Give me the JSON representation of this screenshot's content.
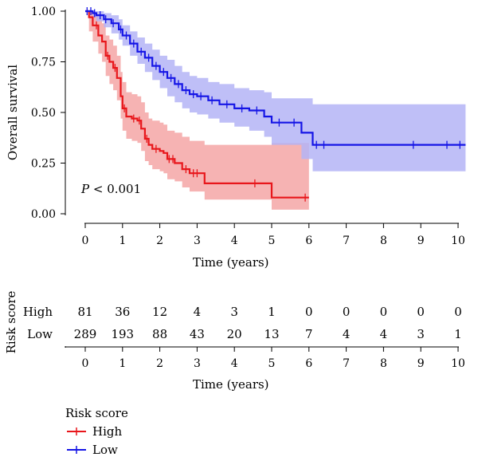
{
  "chart_data": [
    {
      "type": "line",
      "subtype": "kaplan-meier",
      "title": "",
      "xlabel": "Time (years)",
      "ylabel": "Overall survival",
      "xlim": [
        0,
        10.2
      ],
      "ylim": [
        0,
        1.0
      ],
      "x_ticks": [
        "0",
        "1",
        "2",
        "3",
        "4",
        "5",
        "6",
        "7",
        "8",
        "9",
        "10"
      ],
      "y_ticks": [
        "0.00",
        "0.25",
        "0.50",
        "0.75",
        "1.00"
      ],
      "annotation": {
        "p_symbol": "P",
        "p_rest": " < 0.001"
      },
      "grid": false,
      "series": [
        {
          "name": "High",
          "color": "#e8161b",
          "band_color": "#f4a6a6",
          "x": [
            0,
            0.1,
            0.2,
            0.35,
            0.45,
            0.55,
            0.65,
            0.75,
            0.85,
            0.95,
            1.0,
            1.1,
            1.25,
            1.4,
            1.5,
            1.6,
            1.7,
            1.8,
            2.0,
            2.1,
            2.2,
            2.4,
            2.6,
            2.8,
            3.2,
            4.5,
            5.0,
            6.0
          ],
          "y": [
            1.0,
            0.97,
            0.93,
            0.88,
            0.85,
            0.78,
            0.75,
            0.72,
            0.67,
            0.58,
            0.52,
            0.48,
            0.47,
            0.46,
            0.42,
            0.37,
            0.34,
            0.32,
            0.31,
            0.3,
            0.27,
            0.25,
            0.22,
            0.2,
            0.15,
            0.15,
            0.08,
            0.08
          ],
          "upper": [
            1.0,
            1.0,
            0.99,
            0.97,
            0.94,
            0.88,
            0.86,
            0.83,
            0.78,
            0.7,
            0.65,
            0.6,
            0.59,
            0.58,
            0.55,
            0.5,
            0.47,
            0.46,
            0.45,
            0.44,
            0.41,
            0.4,
            0.38,
            0.36,
            0.34,
            0.34,
            0.35,
            0.35
          ],
          "lower": [
            1.0,
            0.9,
            0.85,
            0.79,
            0.75,
            0.68,
            0.64,
            0.61,
            0.56,
            0.47,
            0.41,
            0.37,
            0.36,
            0.35,
            0.31,
            0.26,
            0.24,
            0.22,
            0.21,
            0.2,
            0.17,
            0.16,
            0.13,
            0.11,
            0.07,
            0.07,
            0.02,
            0.02
          ],
          "censor_x": [
            0.3,
            0.6,
            0.8,
            1.05,
            1.3,
            1.45,
            1.65,
            1.9,
            2.25,
            2.35,
            2.7,
            2.9,
            3.0,
            4.55,
            5.9
          ],
          "at_risk": [
            81,
            36,
            12,
            4,
            3,
            1,
            0,
            0,
            0,
            0,
            0
          ]
        },
        {
          "name": "Low",
          "color": "#1515e6",
          "band_color": "#b4b4f6",
          "x": [
            0,
            0.2,
            0.3,
            0.5,
            0.7,
            0.9,
            1.0,
            1.2,
            1.4,
            1.6,
            1.8,
            2.0,
            2.2,
            2.4,
            2.6,
            2.8,
            3.0,
            3.3,
            3.6,
            4.0,
            4.4,
            4.8,
            5.0,
            5.4,
            5.8,
            6.1,
            10.2
          ],
          "y": [
            1.0,
            0.99,
            0.98,
            0.96,
            0.94,
            0.91,
            0.88,
            0.84,
            0.8,
            0.77,
            0.73,
            0.7,
            0.67,
            0.64,
            0.61,
            0.59,
            0.58,
            0.56,
            0.54,
            0.52,
            0.51,
            0.48,
            0.45,
            0.45,
            0.4,
            0.34,
            0.34
          ],
          "upper": [
            1.0,
            1.0,
            1.0,
            0.99,
            0.98,
            0.96,
            0.93,
            0.9,
            0.87,
            0.84,
            0.81,
            0.78,
            0.76,
            0.73,
            0.7,
            0.68,
            0.67,
            0.65,
            0.64,
            0.62,
            0.61,
            0.6,
            0.57,
            0.57,
            0.57,
            0.54,
            0.54
          ],
          "lower": [
            1.0,
            0.97,
            0.95,
            0.92,
            0.89,
            0.86,
            0.83,
            0.78,
            0.74,
            0.7,
            0.66,
            0.62,
            0.58,
            0.55,
            0.52,
            0.5,
            0.49,
            0.47,
            0.45,
            0.43,
            0.41,
            0.38,
            0.34,
            0.34,
            0.27,
            0.21,
            0.21
          ],
          "censor_x": [
            0.05,
            0.15,
            0.25,
            0.4,
            0.55,
            0.75,
            0.95,
            1.1,
            1.3,
            1.5,
            1.7,
            1.9,
            2.1,
            2.3,
            2.5,
            2.7,
            2.9,
            3.1,
            3.4,
            3.8,
            4.2,
            4.6,
            5.2,
            5.6,
            6.2,
            6.4,
            8.8,
            9.7,
            10.05
          ],
          "at_risk": [
            289,
            193,
            88,
            43,
            20,
            13,
            7,
            4,
            4,
            3,
            1
          ]
        }
      ]
    },
    {
      "type": "table",
      "title": "",
      "ylabel": "Risk score",
      "xlabel": "Time (years)",
      "x_ticks": [
        "0",
        "1",
        "2",
        "3",
        "4",
        "5",
        "6",
        "7",
        "8",
        "9",
        "10"
      ],
      "rows": [
        {
          "label": "High",
          "color": "#e8161b",
          "values": [
            81,
            36,
            12,
            4,
            3,
            1,
            0,
            0,
            0,
            0,
            0
          ]
        },
        {
          "label": "Low",
          "color": "#1515e6",
          "values": [
            289,
            193,
            88,
            43,
            20,
            13,
            7,
            4,
            4,
            3,
            1
          ]
        }
      ]
    }
  ],
  "legend": {
    "title": "Risk score",
    "placement": "bottom-left",
    "items": [
      {
        "label": "High",
        "color": "#e8161b"
      },
      {
        "label": "Low",
        "color": "#1515e6"
      }
    ]
  }
}
